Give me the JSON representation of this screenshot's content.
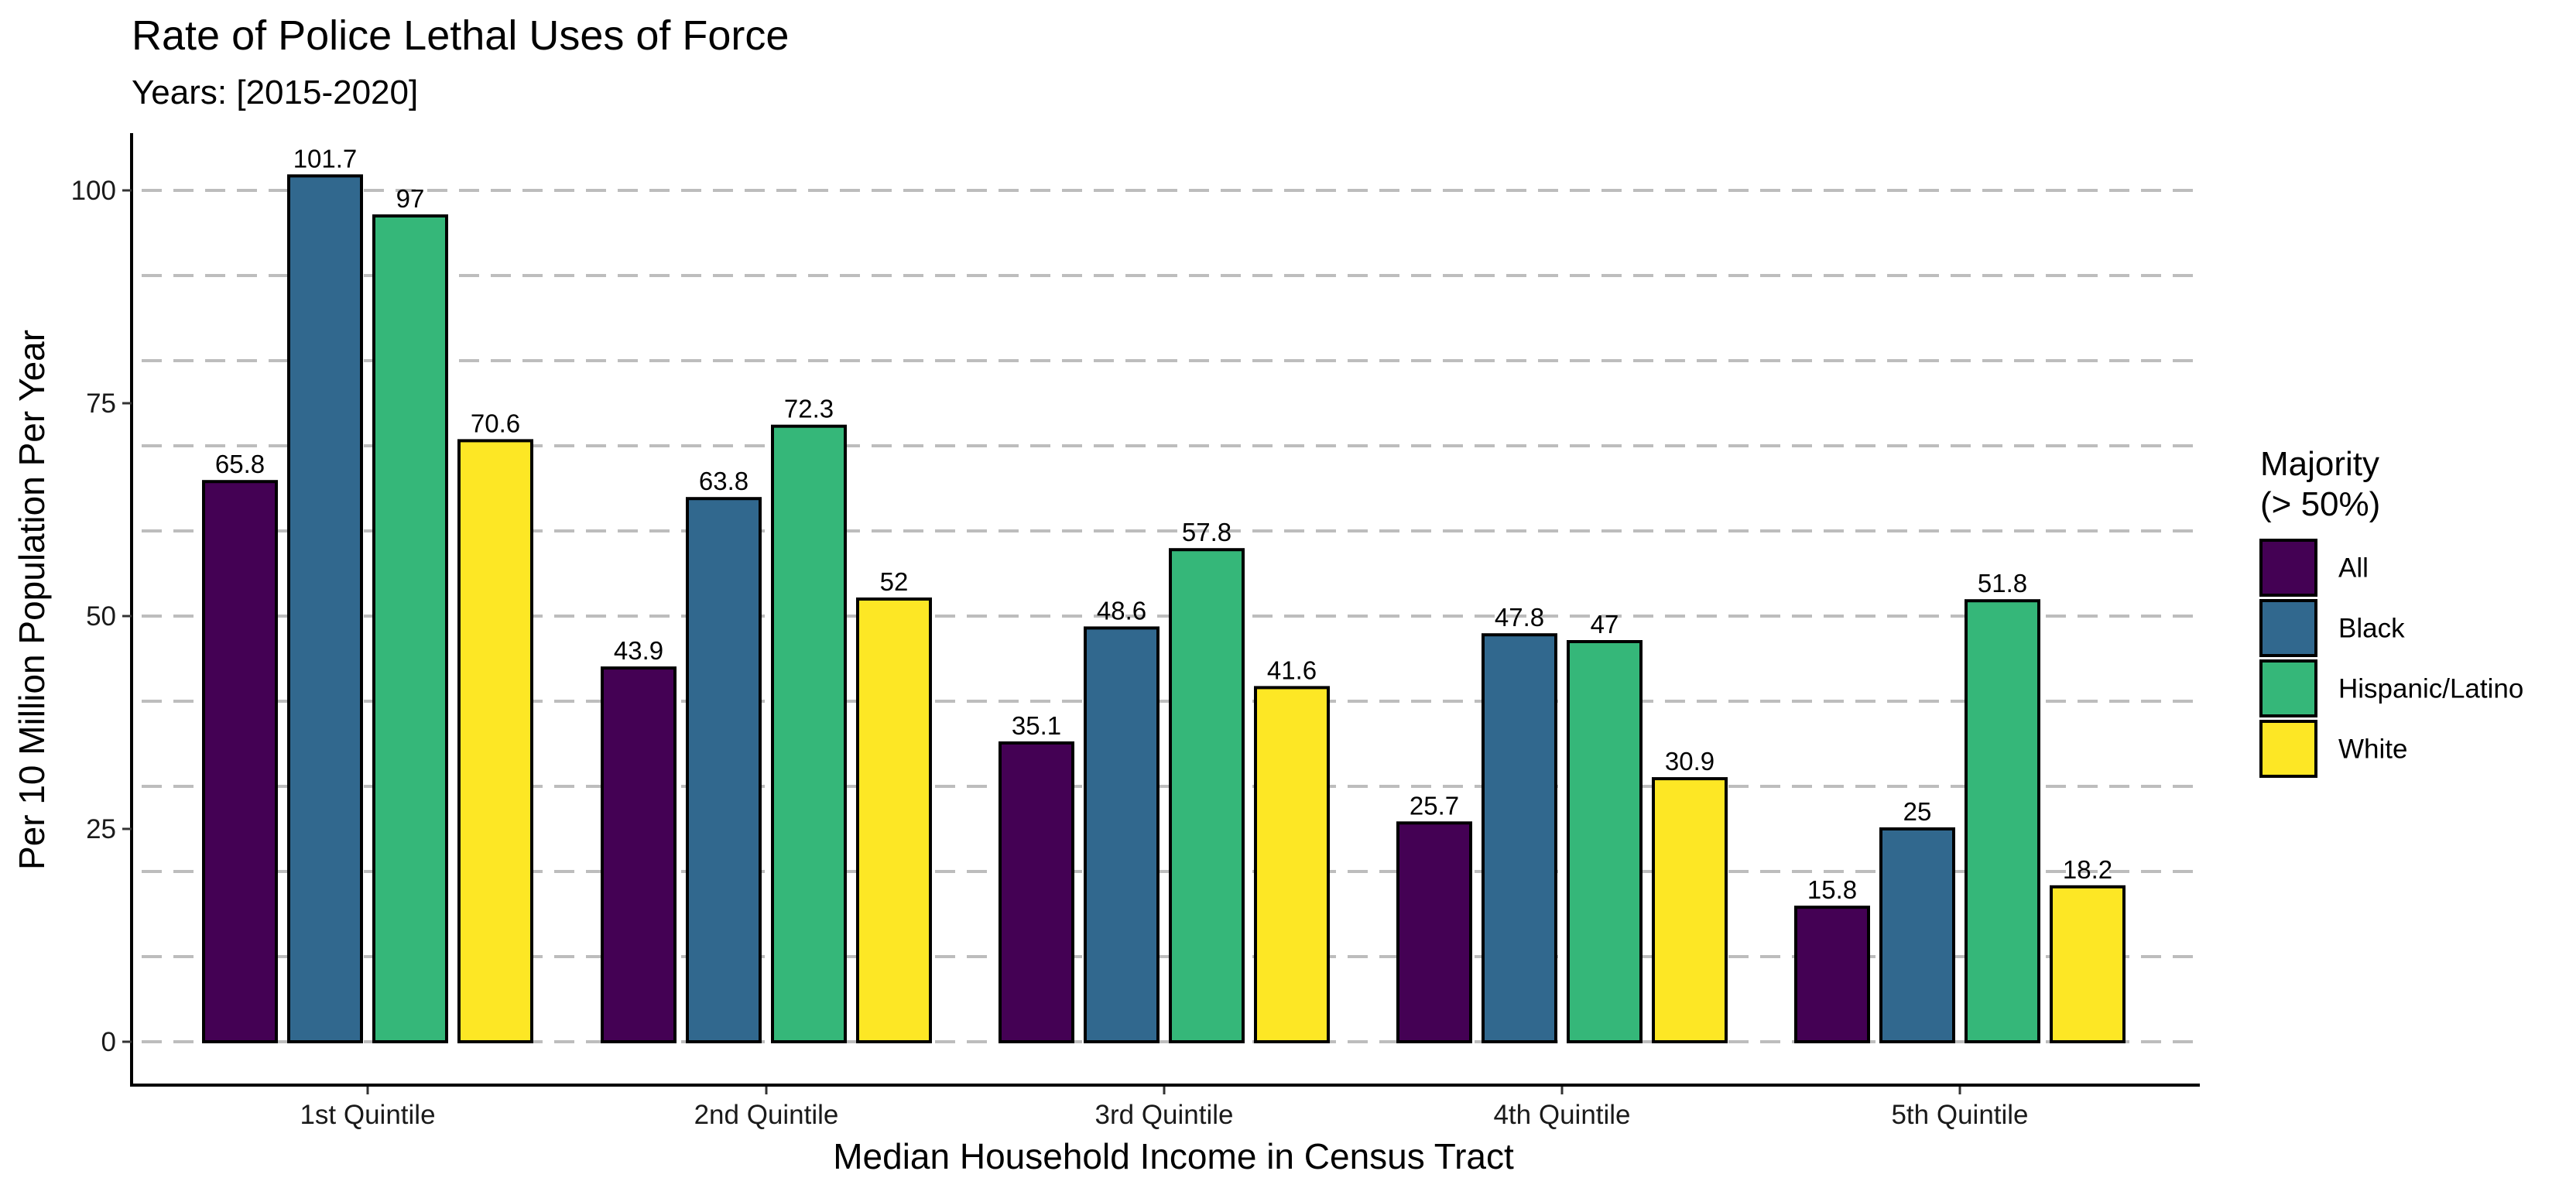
{
  "chart_data": {
    "type": "bar",
    "title": "Rate of Police Lethal Uses of Force",
    "subtitle": "Years: [2015-2020]",
    "xlabel": "Median Household Income in Census Tract",
    "ylabel": "Per 10 Million Population Per Year",
    "categories": [
      "1st Quintile",
      "2nd Quintile",
      "3rd Quintile",
      "4th Quintile",
      "5th Quintile"
    ],
    "series": [
      {
        "name": "All",
        "color": "#440154",
        "values": [
          65.8,
          43.9,
          35.1,
          25.7,
          15.8
        ]
      },
      {
        "name": "Black",
        "color": "#31688E",
        "values": [
          101.7,
          63.8,
          48.6,
          47.8,
          25
        ]
      },
      {
        "name": "Hispanic/Latino",
        "color": "#35B779",
        "values": [
          97,
          72.3,
          57.8,
          47,
          51.8
        ]
      },
      {
        "name": "White",
        "color": "#FDE725",
        "values": [
          70.6,
          52,
          41.6,
          30.9,
          18.2
        ]
      }
    ],
    "ylim": [
      0,
      105
    ],
    "yticks": [
      0,
      25,
      50,
      75,
      100
    ],
    "gridlines": [
      0,
      10,
      20,
      30,
      40,
      50,
      60,
      70,
      80,
      90,
      100
    ],
    "grid": "horizontal-dashed",
    "legend": {
      "title_line1": "Majority",
      "title_line2": "(> 50%)",
      "placement": "right"
    }
  }
}
